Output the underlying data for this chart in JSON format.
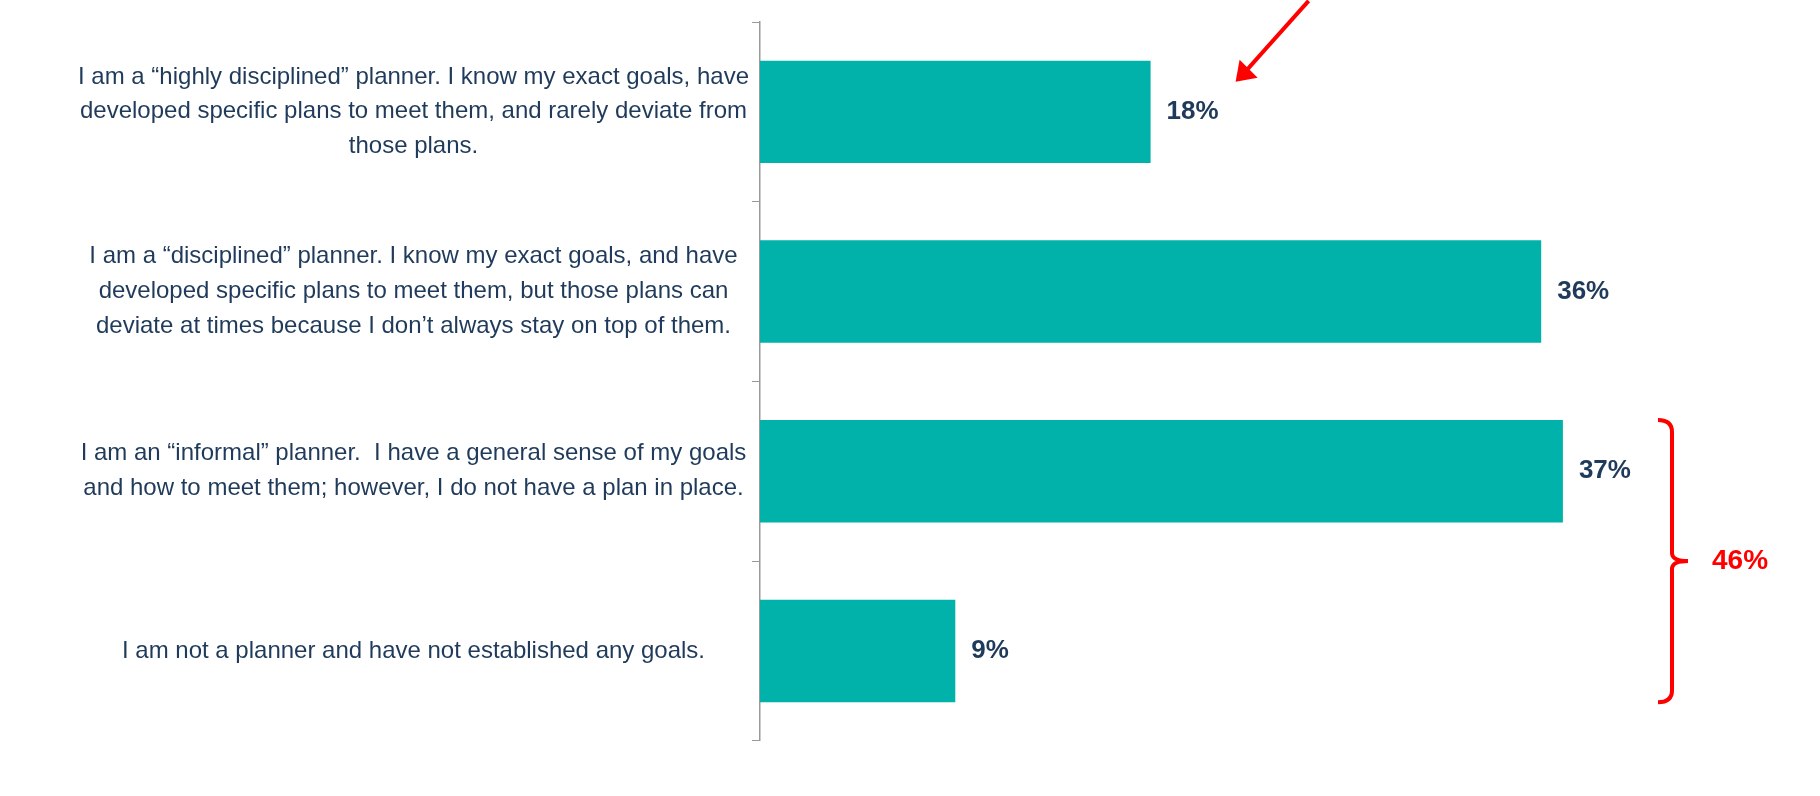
{
  "chart_data": {
    "type": "bar",
    "orientation": "horizontal",
    "categories": [
      "I am a “highly disciplined” planner. I know my exact goals, have developed specific plans to meet them, and rarely deviate from those plans.",
      "I am a “disciplined” planner. I know my exact goals, and have developed specific plans to meet them, but those plans can deviate at times because I don’t always stay on top of them.",
      "I am an “informal” planner.  I have a general sense of my goals and how to meet them; however, I do not have a plan in place.",
      "I am not a planner and have not established any goals."
    ],
    "values": [
      18,
      36,
      37,
      9
    ],
    "color": "#00b2a9",
    "value_labels": [
      "18%",
      "36%",
      "37%",
      "9%"
    ],
    "annotations": [
      "46%"
    ],
    "tick_labels": "y",
    "grid": false,
    "legend": false
  }
}
